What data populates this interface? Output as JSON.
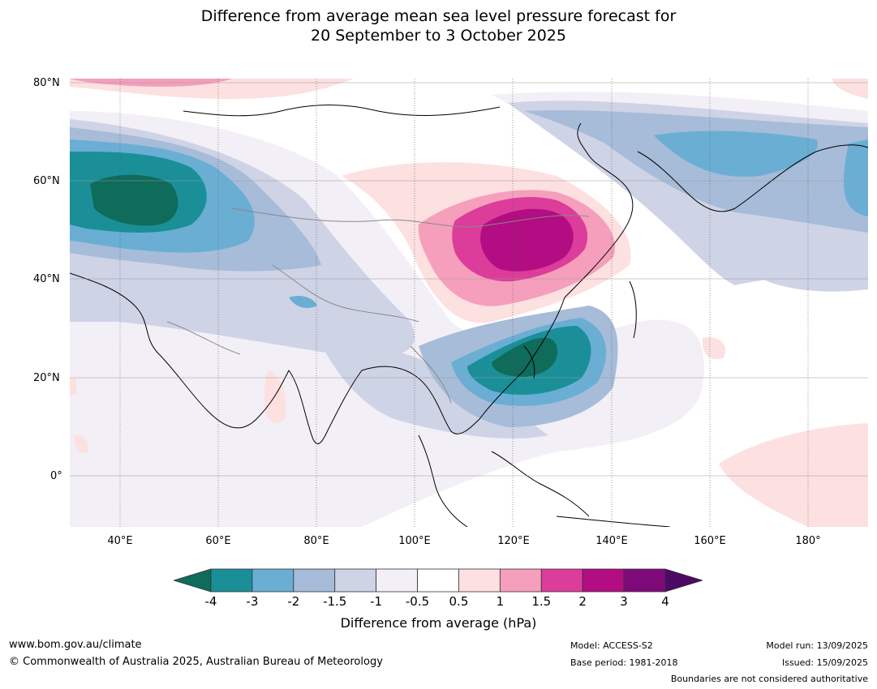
{
  "title": {
    "line1": "Difference from average mean sea level pressure forecast for",
    "line2": "20 September to 3 October 2025"
  },
  "map": {
    "latitude_labels": [
      "80°N",
      "60°N",
      "40°N",
      "20°N",
      "0°"
    ],
    "longitude_labels": [
      "40°E",
      "60°E",
      "80°E",
      "100°E",
      "120°E",
      "140°E",
      "160°E",
      "180°"
    ],
    "anomaly_centres": [
      {
        "region": "west-siberia-low",
        "level": "<-4"
      },
      {
        "region": "east-asia-high",
        "level": "3"
      },
      {
        "region": "philippine-sea-low",
        "level": "<-4"
      }
    ]
  },
  "colorbar": {
    "ticks": [
      "-4",
      "-3",
      "-2",
      "-1.5",
      "-1",
      "-0.5",
      "0.5",
      "1",
      "1.5",
      "2",
      "3",
      "4"
    ],
    "colors": [
      "#0f6b5a",
      "#1a8f98",
      "#6aaed4",
      "#a6bcd8",
      "#cfd3e6",
      "#f2eff6",
      "#ffffff",
      "#fde0e0",
      "#f59fbd",
      "#dc3c9a",
      "#b20d82",
      "#7e0a7a",
      "#4c0a64"
    ],
    "label": "Difference from average (hPa)"
  },
  "footer": {
    "website": "www.bom.gov.au/climate",
    "copyright": "© Commonwealth of Australia 2025, Australian Bureau of Meteorology",
    "model": "Model: ACCESS-S2",
    "base_period": "Base period: 1981-2018",
    "model_run": "Model run: 13/09/2025",
    "issued": "Issued: 15/09/2025",
    "disclaimer": "Boundaries are not considered authoritative"
  }
}
